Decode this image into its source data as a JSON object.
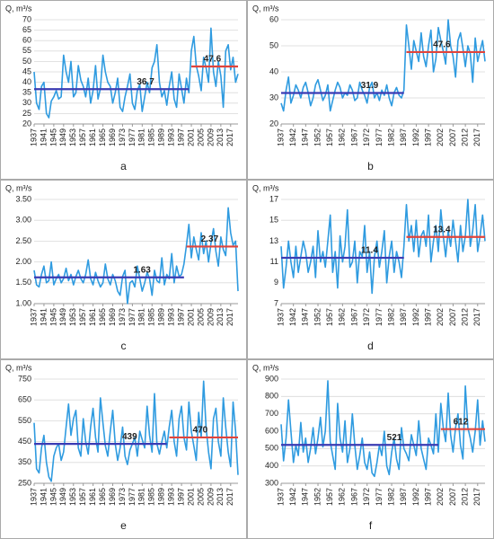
{
  "chart_data": [
    {
      "type": "line",
      "panel": "a",
      "y_label": "Q, m³/s",
      "xlim": [
        1937,
        2020
      ],
      "ylim": [
        20,
        70
      ],
      "yticks": [
        20,
        25,
        30,
        35,
        40,
        45,
        50,
        55,
        60,
        65,
        70
      ],
      "grid": true,
      "xticks": [
        1937,
        1941,
        1945,
        1949,
        1953,
        1957,
        1961,
        1965,
        1969,
        1973,
        1977,
        1981,
        1985,
        1989,
        1993,
        1997,
        2001,
        2005,
        2009,
        2013,
        2017
      ],
      "x": [
        1937,
        1938,
        1939,
        1940,
        1941,
        1942,
        1943,
        1944,
        1945,
        1946,
        1947,
        1948,
        1949,
        1950,
        1951,
        1952,
        1953,
        1954,
        1955,
        1956,
        1957,
        1958,
        1959,
        1960,
        1961,
        1962,
        1963,
        1964,
        1965,
        1966,
        1967,
        1968,
        1969,
        1970,
        1971,
        1972,
        1973,
        1974,
        1975,
        1976,
        1977,
        1978,
        1979,
        1980,
        1981,
        1982,
        1983,
        1984,
        1985,
        1986,
        1987,
        1988,
        1989,
        1990,
        1991,
        1992,
        1993,
        1994,
        1995,
        1996,
        1997,
        1998,
        1999,
        2000,
        2001,
        2002,
        2003,
        2004,
        2005,
        2006,
        2007,
        2008,
        2009,
        2010,
        2011,
        2012,
        2013,
        2014,
        2015,
        2016,
        2017,
        2018,
        2019,
        2020
      ],
      "values": [
        45,
        30,
        27,
        38,
        40,
        25,
        23,
        31,
        33,
        36,
        32,
        33,
        53,
        45,
        40,
        50,
        33,
        35,
        48,
        41,
        38,
        33,
        42,
        30,
        36,
        48,
        32,
        37,
        53,
        45,
        40,
        38,
        30,
        35,
        42,
        28,
        26,
        33,
        38,
        44,
        30,
        27,
        36,
        39,
        26,
        33,
        40,
        35,
        47,
        50,
        58,
        40,
        33,
        36,
        29,
        38,
        45,
        32,
        28,
        44,
        37,
        30,
        42,
        35,
        55,
        62,
        48,
        43,
        36,
        52,
        47,
        40,
        66,
        45,
        38,
        50,
        43,
        28,
        55,
        58,
        46,
        52,
        40,
        44
      ],
      "color": "#2f9be0",
      "means": [
        {
          "x": [
            1937,
            2000
          ],
          "value": 36.7,
          "color": "#3b3bb3"
        },
        {
          "x": [
            2001,
            2020
          ],
          "value": 47.6,
          "color": "#e0443c"
        }
      ]
    },
    {
      "type": "line",
      "panel": "b",
      "y_label": "Q, m³/s",
      "xlim": [
        1937,
        2020
      ],
      "ylim": [
        20,
        60
      ],
      "yticks": [
        20,
        30,
        40,
        50,
        60
      ],
      "grid": true,
      "xticks": [
        1937,
        1942,
        1947,
        1952,
        1957,
        1962,
        1967,
        1972,
        1977,
        1982,
        1987,
        1992,
        1997,
        2002,
        2007,
        2012,
        2017
      ],
      "x": [
        1937,
        1938,
        1939,
        1940,
        1941,
        1942,
        1943,
        1944,
        1945,
        1946,
        1947,
        1948,
        1949,
        1950,
        1951,
        1952,
        1953,
        1954,
        1955,
        1956,
        1957,
        1958,
        1959,
        1960,
        1961,
        1962,
        1963,
        1964,
        1965,
        1966,
        1967,
        1968,
        1969,
        1970,
        1971,
        1972,
        1973,
        1974,
        1975,
        1976,
        1977,
        1978,
        1979,
        1980,
        1981,
        1982,
        1983,
        1984,
        1985,
        1986,
        1987,
        1988,
        1989,
        1990,
        1991,
        1992,
        1993,
        1994,
        1995,
        1996,
        1997,
        1998,
        1999,
        2000,
        2001,
        2002,
        2003,
        2004,
        2005,
        2006,
        2007,
        2008,
        2009,
        2010,
        2011,
        2012,
        2013,
        2014,
        2015,
        2016,
        2017,
        2018,
        2019,
        2020
      ],
      "values": [
        28,
        25,
        33,
        38,
        28,
        31,
        35,
        33,
        30,
        34,
        36,
        32,
        27,
        30,
        35,
        37,
        33,
        29,
        31,
        35,
        25,
        29,
        33,
        36,
        34,
        30,
        32,
        31,
        35,
        33,
        29,
        30,
        36,
        33,
        31,
        28,
        34,
        36,
        30,
        32,
        29,
        33,
        31,
        35,
        30,
        27,
        32,
        34,
        31,
        30,
        33,
        58,
        50,
        41,
        52,
        48,
        44,
        55,
        46,
        42,
        50,
        56,
        40,
        45,
        57,
        52,
        48,
        43,
        60,
        50,
        46,
        38,
        52,
        55,
        49,
        42,
        50,
        47,
        36,
        53,
        44,
        48,
        52,
        44
      ],
      "color": "#2f9be0",
      "means": [
        {
          "x": [
            1937,
            1987
          ],
          "value": 31.9,
          "color": "#3b3bb3"
        },
        {
          "x": [
            1988,
            2020
          ],
          "value": 47.6,
          "color": "#e0443c"
        }
      ]
    },
    {
      "type": "line",
      "panel": "c",
      "y_label": "Q, m³/s",
      "xlim": [
        1937,
        2020
      ],
      "ylim": [
        1.0,
        3.5
      ],
      "yticks": [
        {
          "value": 1.0,
          "label": "1.00"
        },
        {
          "value": 1.5,
          "label": "1.50"
        },
        {
          "value": 2.0,
          "label": "2.00"
        },
        {
          "value": 2.5,
          "label": "2.50"
        },
        {
          "value": 3.0,
          "label": "3.00"
        },
        {
          "value": 3.5,
          "label": "3.50"
        }
      ],
      "grid": true,
      "xticks": [
        1937,
        1941,
        1945,
        1949,
        1953,
        1957,
        1961,
        1965,
        1969,
        1973,
        1977,
        1981,
        1985,
        1989,
        1993,
        1997,
        2001,
        2005,
        2009,
        2013,
        2017
      ],
      "x": [
        1937,
        1938,
        1939,
        1940,
        1941,
        1942,
        1943,
        1944,
        1945,
        1946,
        1947,
        1948,
        1949,
        1950,
        1951,
        1952,
        1953,
        1954,
        1955,
        1956,
        1957,
        1958,
        1959,
        1960,
        1961,
        1962,
        1963,
        1964,
        1965,
        1966,
        1967,
        1968,
        1969,
        1970,
        1971,
        1972,
        1973,
        1974,
        1975,
        1976,
        1977,
        1978,
        1979,
        1980,
        1981,
        1982,
        1983,
        1984,
        1985,
        1986,
        1987,
        1988,
        1989,
        1990,
        1991,
        1992,
        1993,
        1994,
        1995,
        1996,
        1997,
        1998,
        1999,
        2000,
        2001,
        2002,
        2003,
        2004,
        2005,
        2006,
        2007,
        2008,
        2009,
        2010,
        2011,
        2012,
        2013,
        2014,
        2015,
        2016,
        2017,
        2018,
        2019,
        2020
      ],
      "values": [
        1.8,
        1.45,
        1.4,
        1.7,
        1.9,
        1.5,
        1.55,
        2.0,
        1.45,
        1.6,
        1.7,
        1.5,
        1.6,
        1.85,
        1.55,
        1.7,
        1.45,
        1.65,
        1.8,
        1.6,
        1.5,
        1.7,
        2.05,
        1.6,
        1.45,
        1.75,
        1.55,
        1.4,
        1.5,
        1.95,
        1.6,
        1.45,
        1.7,
        1.55,
        1.3,
        1.2,
        1.65,
        1.8,
        1.0,
        1.5,
        1.55,
        1.4,
        1.9,
        1.6,
        1.3,
        1.5,
        1.75,
        1.6,
        1.2,
        1.8,
        1.55,
        1.5,
        2.1,
        1.45,
        1.7,
        1.6,
        2.2,
        1.5,
        1.9,
        1.65,
        1.7,
        1.95,
        2.4,
        2.9,
        2.1,
        2.6,
        2.3,
        2.05,
        2.7,
        2.2,
        2.5,
        2.0,
        2.45,
        2.8,
        2.25,
        1.9,
        2.6,
        2.3,
        2.15,
        3.3,
        2.7,
        2.4,
        2.5,
        1.3
      ],
      "color": "#2f9be0",
      "means": [
        {
          "x": [
            1937,
            1998
          ],
          "value": 1.63,
          "color": "#3b3bb3"
        },
        {
          "x": [
            1999,
            2020
          ],
          "value": 2.37,
          "color": "#e0443c"
        }
      ]
    },
    {
      "type": "line",
      "panel": "d",
      "y_label": "Q, m³/s",
      "xlim": [
        1937,
        2020
      ],
      "ylim": [
        7,
        17
      ],
      "yticks": [
        7,
        9,
        11,
        13,
        15,
        17
      ],
      "grid": true,
      "xticks": [
        1937,
        1942,
        1947,
        1952,
        1957,
        1962,
        1967,
        1972,
        1977,
        1982,
        1987,
        1992,
        1997,
        2002,
        2007,
        2012,
        2017
      ],
      "x": [
        1937,
        1938,
        1939,
        1940,
        1941,
        1942,
        1943,
        1944,
        1945,
        1946,
        1947,
        1948,
        1949,
        1950,
        1951,
        1952,
        1953,
        1954,
        1955,
        1956,
        1957,
        1958,
        1959,
        1960,
        1961,
        1962,
        1963,
        1964,
        1965,
        1966,
        1967,
        1968,
        1969,
        1970,
        1971,
        1972,
        1973,
        1974,
        1975,
        1976,
        1977,
        1978,
        1979,
        1980,
        1981,
        1982,
        1983,
        1984,
        1985,
        1986,
        1987,
        1988,
        1989,
        1990,
        1991,
        1992,
        1993,
        1994,
        1995,
        1996,
        1997,
        1998,
        1999,
        2000,
        2001,
        2002,
        2003,
        2004,
        2005,
        2006,
        2007,
        2008,
        2009,
        2010,
        2011,
        2012,
        2013,
        2014,
        2015,
        2016,
        2017,
        2018,
        2019,
        2020
      ],
      "values": [
        12.5,
        8.5,
        10.5,
        13,
        11,
        9.5,
        12.5,
        10,
        11.5,
        13,
        12,
        10,
        11,
        12.5,
        9.5,
        14,
        11,
        12,
        10.5,
        13,
        15.5,
        10,
        12,
        8.5,
        13.5,
        11,
        12.5,
        16,
        10.5,
        11,
        13,
        9,
        12,
        11.5,
        14.5,
        10,
        12,
        8,
        11.5,
        13,
        10.5,
        12,
        14,
        9,
        11.5,
        13,
        10,
        12,
        11,
        9.5,
        12.5,
        16.5,
        13,
        14.5,
        12,
        15,
        11.5,
        13.5,
        14,
        12.5,
        15.5,
        11,
        13,
        14.5,
        12,
        16,
        13.5,
        11.5,
        14,
        12.5,
        15,
        13,
        11,
        14.5,
        12,
        13.5,
        17,
        12.5,
        14,
        16.5,
        12,
        13.5,
        15.5,
        13
      ],
      "color": "#2f9be0",
      "means": [
        {
          "x": [
            1937,
            1987
          ],
          "value": 11.4,
          "color": "#3b3bb3"
        },
        {
          "x": [
            1988,
            2020
          ],
          "value": 13.4,
          "color": "#e0443c"
        }
      ]
    },
    {
      "type": "line",
      "panel": "e",
      "y_label": "Q, m³/s",
      "xlim": [
        1937,
        2020
      ],
      "ylim": [
        250,
        750
      ],
      "yticks": [
        250,
        350,
        450,
        550,
        650,
        750
      ],
      "grid": true,
      "xticks": [
        1937,
        1941,
        1945,
        1949,
        1953,
        1957,
        1961,
        1965,
        1969,
        1973,
        1977,
        1981,
        1985,
        1989,
        1993,
        1997,
        2001,
        2005,
        2009,
        2013,
        2017
      ],
      "x": [
        1937,
        1938,
        1939,
        1940,
        1941,
        1942,
        1943,
        1944,
        1945,
        1946,
        1947,
        1948,
        1949,
        1950,
        1951,
        1952,
        1953,
        1954,
        1955,
        1956,
        1957,
        1958,
        1959,
        1960,
        1961,
        1962,
        1963,
        1964,
        1965,
        1966,
        1967,
        1968,
        1969,
        1970,
        1971,
        1972,
        1973,
        1974,
        1975,
        1976,
        1977,
        1978,
        1979,
        1980,
        1981,
        1982,
        1983,
        1984,
        1985,
        1986,
        1987,
        1988,
        1989,
        1990,
        1991,
        1992,
        1993,
        1994,
        1995,
        1996,
        1997,
        1998,
        1999,
        2000,
        2001,
        2002,
        2003,
        2004,
        2005,
        2006,
        2007,
        2008,
        2009,
        2010,
        2011,
        2012,
        2013,
        2014,
        2015,
        2016,
        2017,
        2018,
        2019,
        2020
      ],
      "values": [
        540,
        320,
        300,
        420,
        480,
        350,
        280,
        260,
        380,
        420,
        440,
        360,
        400,
        520,
        630,
        480,
        560,
        600,
        420,
        380,
        560,
        450,
        390,
        520,
        610,
        470,
        400,
        660,
        540,
        430,
        380,
        500,
        600,
        440,
        360,
        420,
        520,
        380,
        340,
        410,
        440,
        470,
        380,
        500,
        460,
        420,
        620,
        480,
        400,
        680,
        440,
        390,
        450,
        500,
        420,
        520,
        600,
        450,
        380,
        560,
        620,
        470,
        410,
        640,
        500,
        430,
        360,
        590,
        470,
        740,
        520,
        400,
        320,
        560,
        610,
        450,
        380,
        660,
        520,
        400,
        330,
        640,
        500,
        290
      ],
      "color": "#2f9be0",
      "means": [
        {
          "x": [
            1937,
            1991
          ],
          "value": 439,
          "color": "#3b3bb3"
        },
        {
          "x": [
            1992,
            2020
          ],
          "value": 470,
          "color": "#e0443c"
        }
      ]
    },
    {
      "type": "line",
      "panel": "f",
      "y_label": "Q, m³/s",
      "xlim": [
        1937,
        2020
      ],
      "ylim": [
        300,
        900
      ],
      "yticks": [
        300,
        400,
        500,
        600,
        700,
        800,
        900
      ],
      "grid": true,
      "xticks": [
        1937,
        1942,
        1947,
        1952,
        1957,
        1962,
        1967,
        1972,
        1977,
        1982,
        1987,
        1992,
        1997,
        2002,
        2007,
        2012,
        2017
      ],
      "x": [
        1937,
        1938,
        1939,
        1940,
        1941,
        1942,
        1943,
        1944,
        1945,
        1946,
        1947,
        1948,
        1949,
        1950,
        1951,
        1952,
        1953,
        1954,
        1955,
        1956,
        1957,
        1958,
        1959,
        1960,
        1961,
        1962,
        1963,
        1964,
        1965,
        1966,
        1967,
        1968,
        1969,
        1970,
        1971,
        1972,
        1973,
        1974,
        1975,
        1976,
        1977,
        1978,
        1979,
        1980,
        1981,
        1982,
        1983,
        1984,
        1985,
        1986,
        1987,
        1988,
        1989,
        1990,
        1991,
        1992,
        1993,
        1994,
        1995,
        1996,
        1997,
        1998,
        1999,
        2000,
        2001,
        2002,
        2003,
        2004,
        2005,
        2006,
        2007,
        2008,
        2009,
        2010,
        2011,
        2012,
        2013,
        2014,
        2015,
        2016,
        2017,
        2018,
        2019,
        2020
      ],
      "values": [
        640,
        430,
        560,
        780,
        600,
        420,
        520,
        460,
        650,
        480,
        560,
        420,
        500,
        620,
        470,
        560,
        680,
        510,
        600,
        890,
        540,
        460,
        380,
        760,
        560,
        480,
        660,
        420,
        500,
        700,
        520,
        380,
        460,
        560,
        420,
        380,
        480,
        360,
        340,
        420,
        520,
        460,
        600,
        400,
        350,
        480,
        560,
        440,
        380,
        620,
        500,
        470,
        430,
        580,
        520,
        460,
        660,
        500,
        440,
        380,
        560,
        520,
        470,
        700,
        480,
        760,
        620,
        540,
        820,
        580,
        480,
        620,
        700,
        520,
        440,
        860,
        620,
        560,
        480,
        600,
        780,
        520,
        660,
        540
      ],
      "color": "#2f9be0",
      "means": [
        {
          "x": [
            1937,
            2001
          ],
          "value": 521,
          "color": "#3b3bb3"
        },
        {
          "x": [
            2002,
            2020
          ],
          "value": 612,
          "color": "#e0443c"
        }
      ]
    }
  ]
}
